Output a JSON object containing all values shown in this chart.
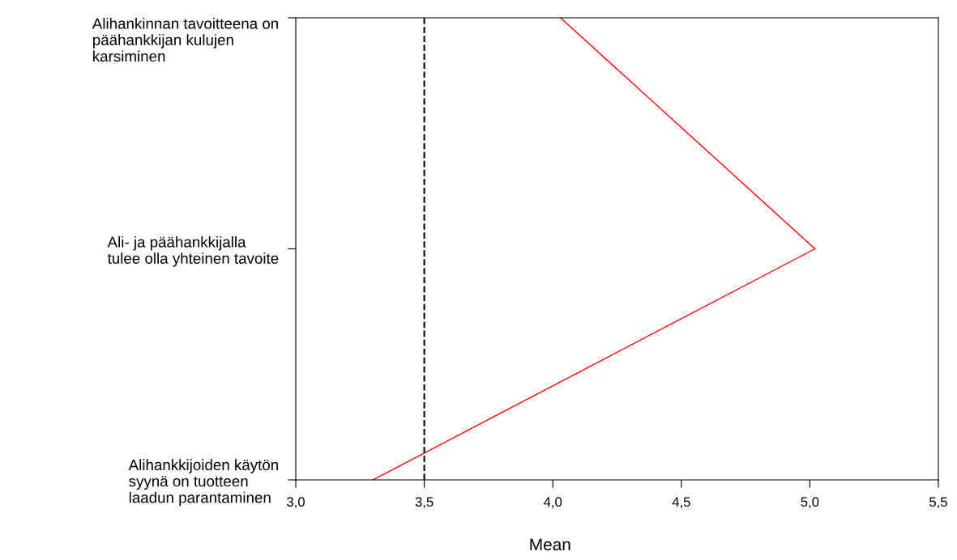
{
  "chart_data": {
    "type": "line",
    "orientation": "horizontal",
    "xlabel": "Mean",
    "categories": [
      "Alihankinnan tavoitteena on\npäähankkijan kulujen\nkarsiminen",
      "Ali- ja päähankkijalla\ntulee olla yhteinen tavoite",
      "Alihankkijoiden käytön\nsyynä on tuotteen\nlaadun parantaminen"
    ],
    "series": [
      {
        "color": "#ff0000",
        "values": [
          4.03,
          5.02,
          3.3
        ]
      }
    ],
    "xlim": [
      3.0,
      5.5
    ],
    "xticks": [
      {
        "value": 3.0,
        "label": "3,0"
      },
      {
        "value": 3.5,
        "label": "3,5"
      },
      {
        "value": 4.0,
        "label": "4,0"
      },
      {
        "value": 4.5,
        "label": "4,5"
      },
      {
        "value": 5.0,
        "label": "5,0"
      },
      {
        "value": 5.5,
        "label": "5,5"
      }
    ],
    "ref_lines": [
      {
        "axis": "x",
        "value": 3.5,
        "color": "#000000",
        "line_style": "dashed"
      }
    ],
    "grid": false,
    "marker": "none",
    "line_style": "solid"
  }
}
